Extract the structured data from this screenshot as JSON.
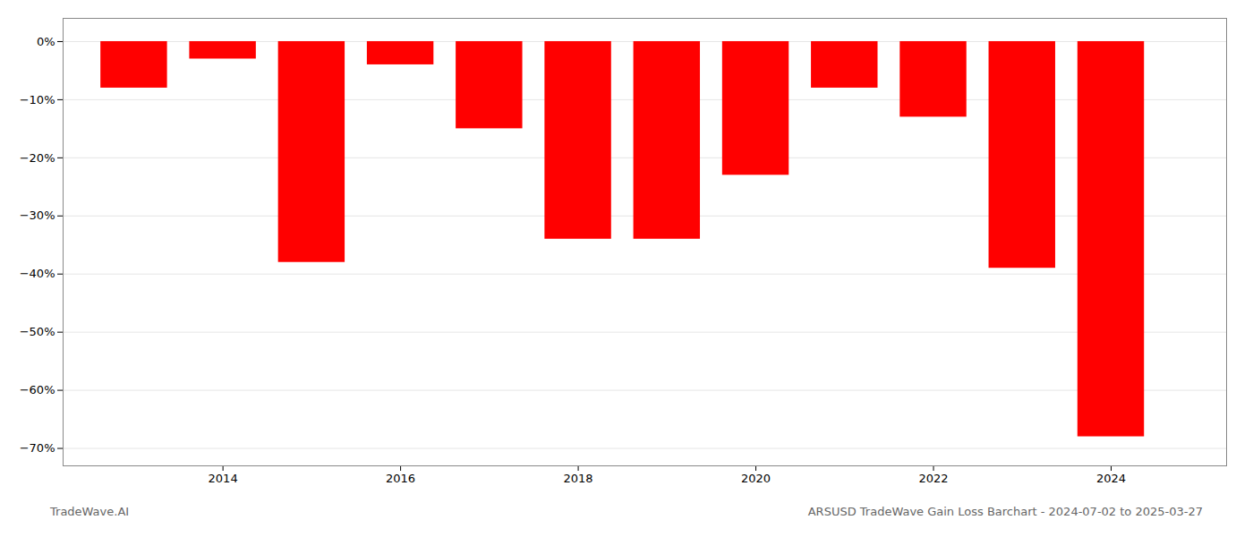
{
  "chart_data": {
    "type": "bar",
    "x": [
      2013,
      2014,
      2015,
      2016,
      2017,
      2018,
      2019,
      2020,
      2021,
      2022,
      2023,
      2024
    ],
    "values": [
      -8.0,
      -3.0,
      -38.0,
      -4.0,
      -15.0,
      -34.0,
      -34.0,
      -23.0,
      -8.0,
      -13.0,
      -39.0,
      -68.0
    ],
    "color": "#ff0000",
    "xlim": [
      2012.2,
      2025.3
    ],
    "xticks": [
      2014,
      2016,
      2018,
      2020,
      2022,
      2024
    ],
    "ylim": [
      -73,
      4
    ],
    "yticks": [
      {
        "value": 0,
        "label": "0%"
      },
      {
        "value": -10,
        "label": "−10%"
      },
      {
        "value": -20,
        "label": "−20%"
      },
      {
        "value": -30,
        "label": "−30%"
      },
      {
        "value": -40,
        "label": "−40%"
      },
      {
        "value": -50,
        "label": "−50%"
      },
      {
        "value": -60,
        "label": "−60%"
      },
      {
        "value": -70,
        "label": "−70%"
      }
    ],
    "grid": true,
    "annotations": [
      "TradeWave.AI",
      "ARSUSD TradeWave Gain Loss Barchart - 2024-07-02 to 2025-03-27"
    ]
  }
}
